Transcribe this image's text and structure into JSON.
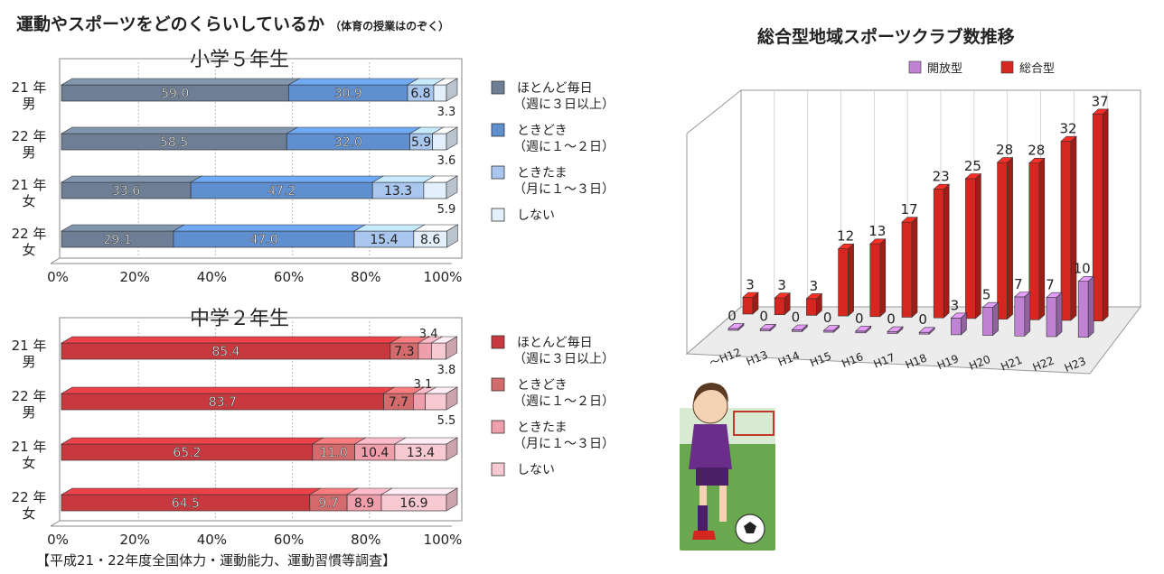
{
  "heading": {
    "main": "運動やスポーツをどのくらいしているか",
    "note": "（体育の授業はのぞく）"
  },
  "source": "【平成21・22年度全国体力・運動能力、運動習慣等調査】",
  "right_title": "総合型地域スポーツクラブ数推移",
  "colors": {
    "elementary": [
      "#6e7f95",
      "#5f8fcf",
      "#a9c6ee",
      "#e3effb"
    ],
    "junior": [
      "#c7393e",
      "#d36a6c",
      "#ef9fab",
      "#f7c9d1"
    ],
    "open_type": "#c083d3",
    "comprehensive": "#d5271f"
  },
  "chart_data": [
    {
      "type": "bar",
      "title": "小学５年生",
      "categories": [
        "21 年\n男",
        "22 年\n男",
        "21 年\n女",
        "22 年\n女"
      ],
      "xlim": [
        0,
        100
      ],
      "x_ticks": [
        "0%",
        "20%",
        "40%",
        "60%",
        "80%",
        "100%"
      ],
      "legend": [
        "ほとんど毎日\n（週に３日以上）",
        "ときどき\n（週に１～２日）",
        "ときたま\n（月に１～３日）",
        "しない"
      ],
      "series": [
        {
          "name": "ほとんど毎日（週に３日以上）",
          "values": [
            59.0,
            58.5,
            33.6,
            29.1
          ],
          "labels": [
            "59.0",
            "58.5",
            "33.6",
            "29.1"
          ]
        },
        {
          "name": "ときどき（週に１～２日）",
          "values": [
            30.9,
            32.0,
            47.2,
            47.0
          ],
          "labels": [
            "30.9",
            "32.0",
            "47.2",
            "47.0"
          ]
        },
        {
          "name": "ときたま（月に１～３日）",
          "values": [
            6.8,
            5.9,
            13.3,
            15.4
          ],
          "labels": [
            "6.8",
            "5.9",
            "13.3",
            "15.4"
          ]
        },
        {
          "name": "しない",
          "values": [
            3.3,
            3.6,
            5.9,
            8.6
          ],
          "labels": [
            "3.3",
            "3.6",
            "5.9",
            "8.6"
          ]
        }
      ]
    },
    {
      "type": "bar",
      "title": "中学２年生",
      "categories": [
        "21 年\n男",
        "22 年\n男",
        "21 年\n女",
        "22 年\n女"
      ],
      "xlim": [
        0,
        100
      ],
      "x_ticks": [
        "0%",
        "20%",
        "40%",
        "60%",
        "80%",
        "100%"
      ],
      "legend": [
        "ほとんど毎日\n（週に３日以上）",
        "ときどき\n（週に１～２日）",
        "ときたま\n（月に１～３日）",
        "しない"
      ],
      "series": [
        {
          "name": "ほとんど毎日（週に３日以上）",
          "values": [
            85.4,
            83.7,
            65.2,
            64.5
          ],
          "labels": [
            "85.4",
            "83.7",
            "65.2",
            "64.5"
          ]
        },
        {
          "name": "ときどき（週に１～２日）",
          "values": [
            7.3,
            7.7,
            11.0,
            9.7
          ],
          "labels": [
            "7.3",
            "7.7",
            "11.0",
            "9.7"
          ]
        },
        {
          "name": "ときたま（月に１～３日）",
          "values": [
            3.4,
            3.1,
            10.4,
            8.9
          ],
          "labels": [
            "3.4",
            "3.1",
            "10.4",
            "8.9"
          ]
        },
        {
          "name": "しない",
          "values": [
            3.8,
            5.5,
            13.4,
            16.9
          ],
          "labels": [
            "3.8",
            "5.5",
            "13.4",
            "16.9"
          ]
        }
      ]
    },
    {
      "type": "bar",
      "title": "総合型地域スポーツクラブ数推移",
      "categories": [
        "～H12",
        "H13",
        "H14",
        "H15",
        "H16",
        "H17",
        "H18",
        "H19",
        "H20",
        "H21",
        "H22",
        "H23"
      ],
      "legend": [
        "開放型",
        "総合型"
      ],
      "series": [
        {
          "name": "開放型",
          "values": [
            0,
            0,
            0,
            0,
            0,
            0,
            0,
            3,
            5,
            7,
            7,
            10
          ]
        },
        {
          "name": "総合型",
          "values": [
            3,
            3,
            3,
            12,
            13,
            17,
            23,
            25,
            28,
            28,
            32,
            37
          ]
        }
      ]
    }
  ]
}
